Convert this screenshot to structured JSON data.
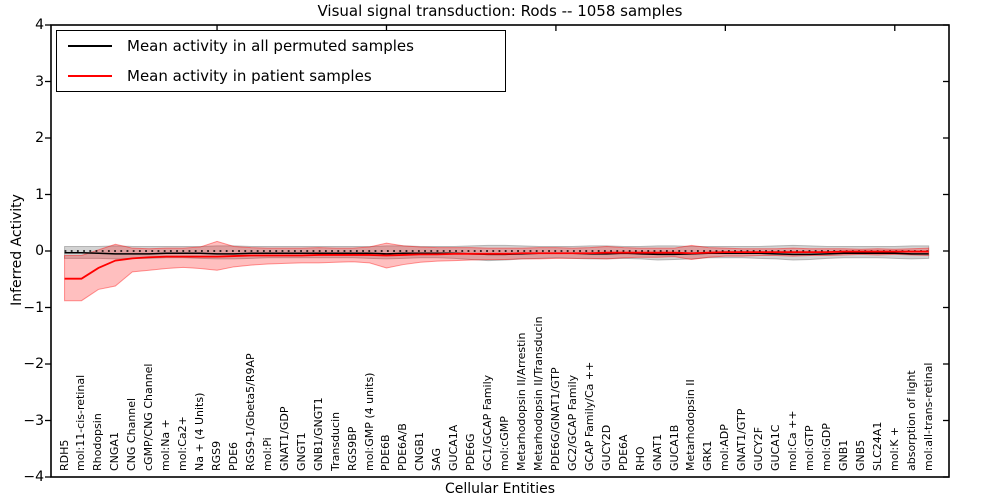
{
  "figure": {
    "title": "Visual signal transduction: Rods -- 1058 samples",
    "xlabel": "Cellular Entities",
    "ylabel": "Inferred Activity"
  },
  "legend": {
    "items": [
      {
        "label": "Mean activity in all permuted samples",
        "color": "#000000"
      },
      {
        "label": "Mean activity in patient samples",
        "color": "#ff0000"
      }
    ]
  },
  "chart_data": {
    "type": "line",
    "title": "Visual signal transduction: Rods -- 1058 samples",
    "xlabel": "Cellular Entities",
    "ylabel": "Inferred Activity",
    "ylim": [
      -4,
      4
    ],
    "yticks": [
      4,
      3,
      2,
      1,
      0,
      -1,
      -2,
      -3,
      -4
    ],
    "grid": false,
    "legend_position": "upper left",
    "baseline": {
      "name": "zero-reference",
      "value": 0,
      "style": "dotted",
      "color": "#000000"
    },
    "categories": [
      "RDH5",
      "mol:11-cis-retinal",
      "Rhodopsin",
      "CNGA1",
      "CNG Channel",
      "cGMP/CNG Channel",
      "mol:Na +",
      "mol:Ca2+",
      "Na + (4 Units)",
      "RGS9",
      "PDE6",
      "RGS9-1/Gbeta5/R9AP",
      "mol:Pi",
      "GNAT1/GDP",
      "GNGT1",
      "GNB1/GNGT1",
      "Transducin",
      "RGS9BP",
      "mol:GMP (4 units)",
      "PDE6B",
      "PDE6A/B",
      "CNGB1",
      "SAG",
      "GUCA1A",
      "PDE6G",
      "GC1/GCAP Family",
      "mol:cGMP",
      "Metarhodopsin II/Arrestin",
      "Metarhodopsin II/Transducin",
      "PDE6G/GNAT1/GTP",
      "GC2/GCAP Family",
      "GCAP Family/Ca ++",
      "GUCY2D",
      "PDE6A",
      "RHO",
      "GNAT1",
      "GUCA1B",
      "Metarhodopsin II",
      "GRK1",
      "mol:ADP",
      "GNAT1/GTP",
      "GUCY2F",
      "GUCA1C",
      "mol:Ca ++",
      "mol:GTP",
      "mol:GDP",
      "GNB1",
      "GNB5",
      "SLC24A1",
      "mol:K +",
      "absorption of light",
      "mol:all-trans-retinal"
    ],
    "series": [
      {
        "name": "Mean activity in all permuted samples",
        "color": "#000000",
        "style": "solid",
        "values": [
          -0.03,
          -0.03,
          -0.04,
          -0.05,
          -0.05,
          -0.05,
          -0.04,
          -0.04,
          -0.04,
          -0.05,
          -0.05,
          -0.04,
          -0.04,
          -0.04,
          -0.04,
          -0.04,
          -0.04,
          -0.04,
          -0.04,
          -0.05,
          -0.04,
          -0.04,
          -0.04,
          -0.04,
          -0.05,
          -0.06,
          -0.06,
          -0.05,
          -0.04,
          -0.04,
          -0.04,
          -0.05,
          -0.05,
          -0.04,
          -0.05,
          -0.06,
          -0.06,
          -0.05,
          -0.04,
          -0.04,
          -0.04,
          -0.04,
          -0.05,
          -0.06,
          -0.06,
          -0.05,
          -0.04,
          -0.04,
          -0.04,
          -0.04,
          -0.05,
          -0.05
        ]
      },
      {
        "name": "Mean activity in patient samples",
        "color": "#ff0000",
        "style": "solid",
        "values": [
          -0.49,
          -0.49,
          -0.3,
          -0.17,
          -0.13,
          -0.11,
          -0.1,
          -0.1,
          -0.1,
          -0.1,
          -0.09,
          -0.08,
          -0.08,
          -0.08,
          -0.08,
          -0.07,
          -0.07,
          -0.07,
          -0.07,
          -0.08,
          -0.07,
          -0.06,
          -0.06,
          -0.05,
          -0.05,
          -0.05,
          -0.05,
          -0.04,
          -0.04,
          -0.04,
          -0.04,
          -0.04,
          -0.03,
          -0.03,
          -0.03,
          -0.03,
          -0.03,
          -0.04,
          -0.03,
          -0.02,
          -0.02,
          -0.02,
          -0.02,
          -0.02,
          -0.02,
          -0.02,
          -0.01,
          -0.01,
          -0.01,
          -0.01,
          -0.01,
          -0.01
        ]
      }
    ],
    "bands": [
      {
        "name": "permuted-samples-range",
        "color": "#808080",
        "opacity": 0.35,
        "upper": [
          0.08,
          0.08,
          0.08,
          0.09,
          0.08,
          0.08,
          0.08,
          0.08,
          0.08,
          0.09,
          0.09,
          0.08,
          0.08,
          0.08,
          0.08,
          0.08,
          0.08,
          0.08,
          0.08,
          0.09,
          0.09,
          0.08,
          0.08,
          0.08,
          0.09,
          0.1,
          0.1,
          0.09,
          0.08,
          0.08,
          0.08,
          0.09,
          0.09,
          0.08,
          0.08,
          0.09,
          0.09,
          0.08,
          0.08,
          0.08,
          0.08,
          0.08,
          0.09,
          0.1,
          0.09,
          0.08,
          0.08,
          0.08,
          0.08,
          0.08,
          0.09,
          0.09
        ],
        "lower": [
          -0.13,
          -0.13,
          -0.13,
          -0.14,
          -0.13,
          -0.13,
          -0.12,
          -0.12,
          -0.13,
          -0.14,
          -0.14,
          -0.13,
          -0.12,
          -0.12,
          -0.12,
          -0.12,
          -0.12,
          -0.12,
          -0.13,
          -0.14,
          -0.13,
          -0.12,
          -0.12,
          -0.13,
          -0.15,
          -0.17,
          -0.16,
          -0.14,
          -0.13,
          -0.12,
          -0.13,
          -0.14,
          -0.14,
          -0.13,
          -0.14,
          -0.16,
          -0.15,
          -0.14,
          -0.12,
          -0.12,
          -0.12,
          -0.13,
          -0.14,
          -0.16,
          -0.15,
          -0.13,
          -0.12,
          -0.12,
          -0.12,
          -0.13,
          -0.14,
          -0.13
        ]
      },
      {
        "name": "patient-samples-range",
        "color": "#ff0000",
        "opacity": 0.25,
        "upper": [
          -0.08,
          -0.08,
          0.02,
          0.12,
          0.05,
          0.04,
          0.05,
          0.05,
          0.07,
          0.17,
          0.08,
          0.06,
          0.05,
          0.05,
          0.05,
          0.06,
          0.05,
          0.05,
          0.07,
          0.14,
          0.09,
          0.07,
          0.06,
          0.06,
          0.06,
          0.05,
          0.05,
          0.05,
          0.06,
          0.06,
          0.05,
          0.06,
          0.08,
          0.06,
          0.05,
          0.05,
          0.05,
          0.1,
          0.06,
          0.05,
          0.04,
          0.04,
          0.04,
          0.05,
          0.04,
          0.04,
          0.04,
          0.03,
          0.04,
          0.03,
          0.04,
          0.05
        ],
        "lower": [
          -0.88,
          -0.88,
          -0.68,
          -0.62,
          -0.37,
          -0.34,
          -0.31,
          -0.29,
          -0.31,
          -0.34,
          -0.28,
          -0.25,
          -0.23,
          -0.22,
          -0.21,
          -0.21,
          -0.2,
          -0.19,
          -0.21,
          -0.3,
          -0.24,
          -0.2,
          -0.18,
          -0.17,
          -0.16,
          -0.15,
          -0.15,
          -0.14,
          -0.14,
          -0.13,
          -0.13,
          -0.13,
          -0.14,
          -0.12,
          -0.11,
          -0.11,
          -0.1,
          -0.15,
          -0.11,
          -0.09,
          -0.09,
          -0.08,
          -0.08,
          -0.09,
          -0.08,
          -0.08,
          -0.07,
          -0.06,
          -0.07,
          -0.06,
          -0.07,
          -0.08
        ]
      }
    ]
  }
}
